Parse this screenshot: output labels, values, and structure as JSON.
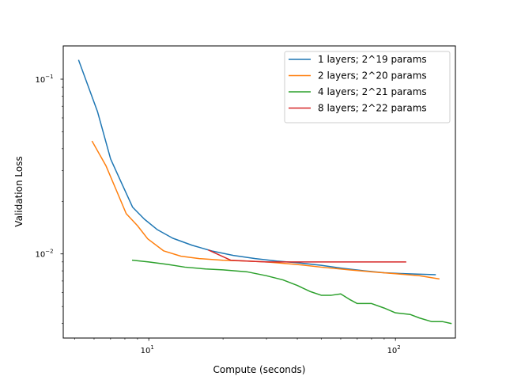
{
  "chart_data": {
    "type": "line",
    "title": "",
    "xlabel": "Compute (seconds)",
    "ylabel": "Validation Loss",
    "x_scale": "log",
    "y_scale": "log",
    "xlim": [
      4.5,
      175
    ],
    "ylim": [
      0.0033,
      0.155
    ],
    "x_ticks": [
      {
        "value": 10,
        "base": "10",
        "exp": "1"
      },
      {
        "value": 100,
        "base": "10",
        "exp": "2"
      }
    ],
    "y_ticks": [
      {
        "value": 0.01,
        "base": "10",
        "exp": "−2"
      },
      {
        "value": 0.1,
        "base": "10",
        "exp": "−1"
      }
    ],
    "grid": false,
    "legend": "top-right",
    "series": [
      {
        "name": "1 layers; 2^19 params",
        "color": "#1f77b4",
        "points": [
          [
            5.2,
            0.128
          ],
          [
            6.2,
            0.065
          ],
          [
            7.0,
            0.035
          ],
          [
            7.8,
            0.025
          ],
          [
            8.6,
            0.0185
          ],
          [
            9.6,
            0.0158
          ],
          [
            10.8,
            0.0138
          ],
          [
            12.5,
            0.0123
          ],
          [
            15.0,
            0.0112
          ],
          [
            18.0,
            0.0104
          ],
          [
            22.0,
            0.0098
          ],
          [
            27.0,
            0.0094
          ],
          [
            33.0,
            0.0091
          ],
          [
            40.0,
            0.0089
          ],
          [
            50.0,
            0.0086
          ],
          [
            60.0,
            0.0083
          ],
          [
            75.0,
            0.008
          ],
          [
            90.0,
            0.0078
          ],
          [
            110.0,
            0.0077
          ],
          [
            145.0,
            0.0076
          ]
        ]
      },
      {
        "name": "2 layers; 2^20 params",
        "color": "#ff7f0e",
        "points": [
          [
            5.9,
            0.044
          ],
          [
            6.7,
            0.032
          ],
          [
            7.4,
            0.023
          ],
          [
            8.1,
            0.017
          ],
          [
            9.0,
            0.0145
          ],
          [
            9.9,
            0.0122
          ],
          [
            11.5,
            0.0104
          ],
          [
            13.5,
            0.0097
          ],
          [
            16.0,
            0.0094
          ],
          [
            20.0,
            0.0092
          ],
          [
            25.0,
            0.0091
          ],
          [
            30.0,
            0.009
          ],
          [
            40.0,
            0.0087
          ],
          [
            50.0,
            0.0084
          ],
          [
            65.0,
            0.0081
          ],
          [
            80.0,
            0.0079
          ],
          [
            100.0,
            0.0077
          ],
          [
            125.0,
            0.0075
          ],
          [
            150.0,
            0.0072
          ]
        ]
      },
      {
        "name": "4 layers; 2^21 params",
        "color": "#2ca02c",
        "points": [
          [
            8.6,
            0.0092
          ],
          [
            10.0,
            0.009
          ],
          [
            12.0,
            0.0087
          ],
          [
            14.0,
            0.0084
          ],
          [
            17.0,
            0.0082
          ],
          [
            20.0,
            0.0081
          ],
          [
            25.0,
            0.0079
          ],
          [
            30.0,
            0.0075
          ],
          [
            35.0,
            0.0071
          ],
          [
            40.0,
            0.0066
          ],
          [
            45.0,
            0.0061
          ],
          [
            50.0,
            0.0058
          ],
          [
            55.0,
            0.0058
          ],
          [
            60.0,
            0.0059
          ],
          [
            65.0,
            0.0055
          ],
          [
            70.0,
            0.0052
          ],
          [
            80.0,
            0.0052
          ],
          [
            90.0,
            0.0049
          ],
          [
            100.0,
            0.0046
          ],
          [
            115.0,
            0.0045
          ],
          [
            125.0,
            0.0043
          ],
          [
            140.0,
            0.0041
          ],
          [
            155.0,
            0.0041
          ],
          [
            168.0,
            0.004
          ]
        ]
      },
      {
        "name": "8 layers; 2^22 params",
        "color": "#d62728",
        "points": [
          [
            17.5,
            0.0105
          ],
          [
            19.5,
            0.0098
          ],
          [
            21.5,
            0.0092
          ],
          [
            25.0,
            0.0091
          ],
          [
            30.0,
            0.009
          ],
          [
            40.0,
            0.009
          ],
          [
            60.0,
            0.009
          ],
          [
            80.0,
            0.009
          ],
          [
            110.0,
            0.009
          ]
        ]
      }
    ]
  }
}
